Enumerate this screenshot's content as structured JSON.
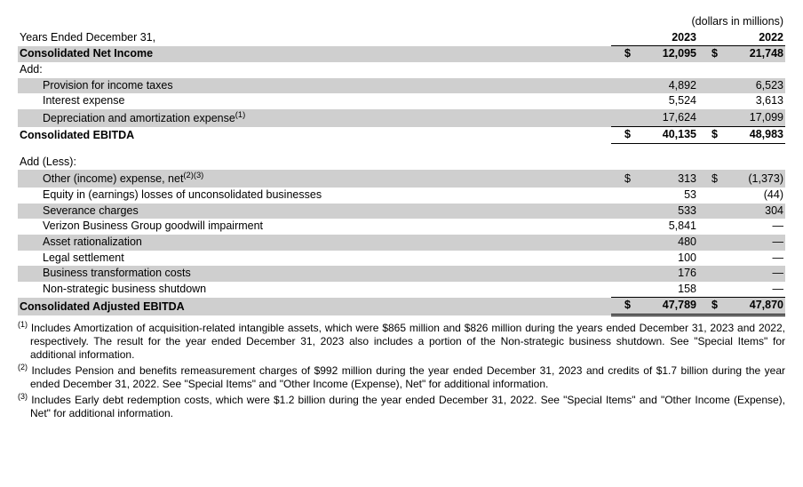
{
  "unit_note": "(dollars in millions)",
  "years_label": "Years Ended December 31,",
  "years": {
    "y2023": "2023",
    "y2022": "2022"
  },
  "rows": {
    "net_income": {
      "label": "Consolidated Net Income",
      "cur": "$",
      "v2023": "12,095",
      "v2022": "21,748"
    },
    "add_label": "Add:",
    "provision": {
      "label": "Provision for income taxes",
      "v2023": "4,892",
      "v2022": "6,523"
    },
    "interest": {
      "label": "Interest expense",
      "v2023": "5,524",
      "v2022": "3,613"
    },
    "dep_amort": {
      "label_html": "Depreciation and amortization expense",
      "sup": "(1)",
      "v2023": "17,624",
      "v2022": "17,099"
    },
    "ebitda": {
      "label": "Consolidated EBITDA",
      "cur": "$",
      "v2023": "40,135",
      "v2022": "48,983"
    },
    "add_less_label": "Add (Less):",
    "other_inc": {
      "label": "Other (income) expense, net",
      "sup": "(2)(3)",
      "cur": "$",
      "v2023": "313",
      "v2022": "(1,373)"
    },
    "equity": {
      "label": "Equity in (earnings) losses of unconsolidated businesses",
      "v2023": "53",
      "v2022": "(44)"
    },
    "severance": {
      "label": "Severance charges",
      "v2023": "533",
      "v2022": "304"
    },
    "goodwill": {
      "label": "Verizon Business Group goodwill impairment",
      "v2023": "5,841",
      "v2022": "—"
    },
    "asset_rat": {
      "label": "Asset rationalization",
      "v2023": "480",
      "v2022": "—"
    },
    "legal": {
      "label": "Legal settlement",
      "v2023": "100",
      "v2022": "—"
    },
    "biz_trans": {
      "label": "Business transformation costs",
      "v2023": "176",
      "v2022": "—"
    },
    "nonstrat": {
      "label": "Non-strategic business shutdown",
      "v2023": "158",
      "v2022": "—"
    },
    "adj_ebitda": {
      "label": "Consolidated Adjusted EBITDA",
      "cur": "$",
      "v2023": "47,789",
      "v2022": "47,870"
    }
  },
  "footnotes": {
    "f1": {
      "sup": "(1)",
      "text": "Includes Amortization of acquisition-related intangible assets, which were $865 million and $826 million during the years ended December 31, 2023 and 2022, respectively. The result for the year ended December 31, 2023 also includes a portion of the Non-strategic business shutdown. See \"Special Items\" for additional information."
    },
    "f2": {
      "sup": "(2)",
      "text": "Includes Pension and benefits remeasurement charges of $992 million during the year ended December 31, 2023 and credits of $1.7 billion during the year ended December 31, 2022. See \"Special Items\" and \"Other Income (Expense), Net\" for additional information."
    },
    "f3": {
      "sup": "(3)",
      "text": "Includes Early debt redemption costs, which were $1.2 billion during the year ended December 31, 2022. See \"Special Items\" and \"Other Income (Expense), Net\" for additional information."
    }
  },
  "colors": {
    "shade": "#cfcfcf",
    "text": "#000000",
    "background": "#ffffff"
  }
}
